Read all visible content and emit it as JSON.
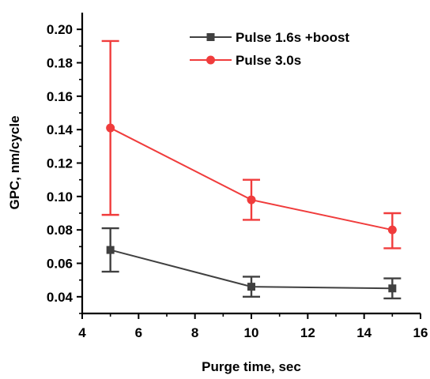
{
  "chart_data": {
    "type": "line",
    "title": "",
    "xlabel": "Purge time, sec",
    "ylabel": "GPC, nm/cycle",
    "xlim": [
      4,
      16
    ],
    "ylim": [
      0.03,
      0.21
    ],
    "xticks": [
      4,
      6,
      8,
      10,
      12,
      14,
      16
    ],
    "yticks": [
      0.04,
      0.06,
      0.08,
      0.1,
      0.12,
      0.14,
      0.16,
      0.18,
      0.2
    ],
    "x_tick_labels": [
      "4",
      "6",
      "8",
      "10",
      "12",
      "14",
      "16"
    ],
    "y_tick_labels": [
      "0.04",
      "0.06",
      "0.08",
      "0.10",
      "0.12",
      "0.14",
      "0.16",
      "0.18",
      "0.20"
    ],
    "grid": false,
    "legend_position": "top-right",
    "series": [
      {
        "name": "Pulse 1.6s +boost",
        "color": "#404040",
        "marker": "square",
        "x": [
          5,
          10,
          15
        ],
        "y": [
          0.068,
          0.046,
          0.045
        ],
        "err_low": [
          0.055,
          0.04,
          0.039
        ],
        "err_high": [
          0.081,
          0.052,
          0.051
        ]
      },
      {
        "name": "Pulse 3.0s",
        "color": "#f03c3c",
        "marker": "circle",
        "x": [
          5,
          10,
          15
        ],
        "y": [
          0.141,
          0.098,
          0.08
        ],
        "err_low": [
          0.089,
          0.086,
          0.069
        ],
        "err_high": [
          0.193,
          0.11,
          0.09
        ]
      }
    ]
  }
}
